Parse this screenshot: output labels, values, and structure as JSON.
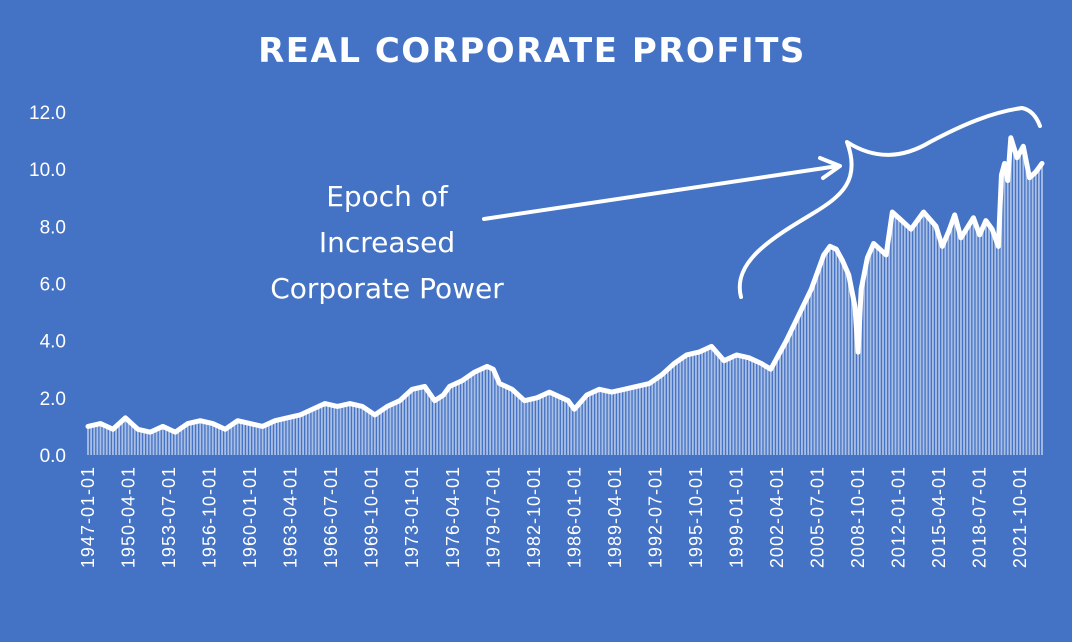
{
  "chart_data": {
    "type": "area",
    "title": "REAL CORPORATE PROFITS",
    "xlabel": "",
    "ylabel": "",
    "ylim": [
      0,
      12
    ],
    "yticks": [
      "0.0",
      "2.0",
      "4.0",
      "6.0",
      "8.0",
      "10.0",
      "12.0"
    ],
    "xticks": [
      "1947-01-01",
      "1950-04-01",
      "1953-07-01",
      "1956-10-01",
      "1960-01-01",
      "1963-04-01",
      "1966-07-01",
      "1969-10-01",
      "1973-01-01",
      "1976-04-01",
      "1979-07-01",
      "1982-10-01",
      "1986-01-01",
      "1989-04-01",
      "1992-07-01",
      "1995-10-01",
      "1999-01-01",
      "2002-04-01",
      "2005-07-01",
      "2008-10-01",
      "2012-01-01",
      "2015-04-01",
      "2018-07-01",
      "2021-10-01"
    ],
    "grid": false,
    "legend": "none",
    "colors": {
      "background": "#4472c4",
      "series": "#ffffff"
    },
    "series": [
      {
        "x": [
          1947.0,
          1948.0,
          1949.0,
          1950.0,
          1950.5,
          1951.0,
          1952.0,
          1953.0,
          1954.0,
          1955.0,
          1956.0,
          1957.0,
          1958.0,
          1959.0,
          1960.0,
          1961.0,
          1962.0,
          1963.0,
          1964.0,
          1965.0,
          1966.0,
          1967.0,
          1968.0,
          1969.0,
          1970.0,
          1971.0,
          1972.0,
          1973.0,
          1974.0,
          1974.8,
          1975.5,
          1976.0,
          1977.0,
          1978.0,
          1979.0,
          1979.5,
          1980.0,
          1981.0,
          1982.0,
          1983.0,
          1984.0,
          1985.0,
          1985.5,
          1986.0,
          1987.0,
          1988.0,
          1989.0,
          1990.0,
          1991.0,
          1992.0,
          1993.0,
          1994.0,
          1995.0,
          1996.0,
          1997.0,
          1998.0,
          1999.0,
          2000.0,
          2001.0,
          2001.75,
          2002.0,
          2003.0,
          2004.0,
          2005.0,
          2006.0,
          2006.5,
          2007.0,
          2007.5,
          2008.0,
          2008.5,
          2008.75,
          2009.0,
          2009.5,
          2010.0,
          2011.0,
          2011.5,
          2012.0,
          2013.0,
          2014.0,
          2015.0,
          2015.5,
          2016.0,
          2016.5,
          2017.0,
          2018.0,
          2018.5,
          2019.0,
          2019.5,
          2020.0,
          2020.25,
          2020.5,
          2020.75,
          2021.0,
          2021.5,
          2022.0,
          2022.5,
          2023.0,
          2023.5
        ],
        "values": [
          1.0,
          1.1,
          0.9,
          1.3,
          1.1,
          0.9,
          0.8,
          1.0,
          0.8,
          1.1,
          1.2,
          1.1,
          0.9,
          1.2,
          1.1,
          1.0,
          1.2,
          1.3,
          1.4,
          1.6,
          1.8,
          1.7,
          1.8,
          1.7,
          1.4,
          1.7,
          1.9,
          2.3,
          2.4,
          1.9,
          2.1,
          2.4,
          2.6,
          2.9,
          3.1,
          3.0,
          2.5,
          2.3,
          1.9,
          2.0,
          2.2,
          2.0,
          1.9,
          1.6,
          2.1,
          2.3,
          2.2,
          2.3,
          2.4,
          2.5,
          2.8,
          3.2,
          3.5,
          3.6,
          3.8,
          3.3,
          3.5,
          3.4,
          3.2,
          3.0,
          3.2,
          4.0,
          4.9,
          5.8,
          7.0,
          7.3,
          7.2,
          6.8,
          6.3,
          5.2,
          3.6,
          5.8,
          6.9,
          7.4,
          7.0,
          8.5,
          8.3,
          7.9,
          8.5,
          8.0,
          7.3,
          7.8,
          8.4,
          7.6,
          8.3,
          7.7,
          8.2,
          7.9,
          7.3,
          9.8,
          10.2,
          9.6,
          11.1,
          10.4,
          10.8,
          9.7,
          9.9,
          10.2
        ]
      }
    ],
    "annotation": {
      "lines": [
        "Epoch of",
        "Increased",
        "Corporate Power"
      ]
    }
  }
}
